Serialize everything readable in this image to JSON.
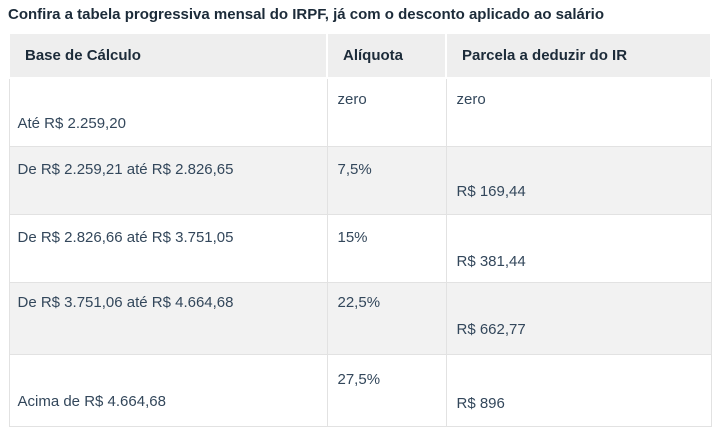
{
  "title": "Confira a tabela progressiva mensal do IRPF, já com o desconto aplicado ao salário",
  "table": {
    "columns": [
      "Base de Cálculo",
      "Alíquota",
      "Parcela a deduzir do IR"
    ],
    "rows": [
      {
        "base": "Até R$ 2.259,20",
        "aliquota": "zero",
        "parcela": "zero"
      },
      {
        "base": "De R$ 2.259,21 até R$ 2.826,65",
        "aliquota": "7,5%",
        "parcela": "R$ 169,44"
      },
      {
        "base": "De R$ 2.826,66 até R$ 3.751,05",
        "aliquota": "15%",
        "parcela": "R$ 381,44"
      },
      {
        "base": "De R$ 3.751,06 até R$ 4.664,68",
        "aliquota": "22,5%",
        "parcela": "R$ 662,77"
      },
      {
        "base": "Acima de R$ 4.664,68",
        "aliquota": "27,5%",
        "parcela": "R$ 896"
      }
    ]
  },
  "colors": {
    "title_text": "#1c2b39",
    "header_bg": "#eeeeee",
    "header_text": "#1c2b39",
    "body_text": "#33475b",
    "row_alt_bg": "#f2f2f2",
    "border": "#e2e2e2"
  }
}
